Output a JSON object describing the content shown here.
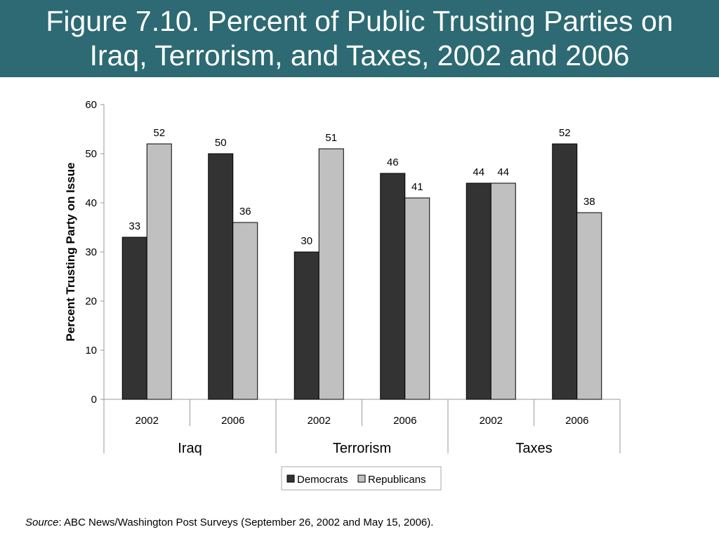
{
  "slide": {
    "title_line1": "Figure 7.10. Percent of Public Trusting Parties on",
    "title_line2": "Iraq, Terrorism, and Taxes, 2002 and 2006",
    "source_label": "Source",
    "source_text": ": ABC News/Washington Post Surveys (September 26, 2002 and May 15, 2006).",
    "header_color": "#2d6a73"
  },
  "chart_data": {
    "type": "bar",
    "title": "",
    "xlabel": "",
    "ylabel": "Percent Trusting Party on Issue",
    "ylim": [
      0,
      60
    ],
    "yticks": [
      0,
      10,
      20,
      30,
      40,
      50,
      60
    ],
    "groups": [
      {
        "label": "Iraq",
        "years": [
          "2002",
          "2006"
        ]
      },
      {
        "label": "Terrorism",
        "years": [
          "2002",
          "2006"
        ]
      },
      {
        "label": "Taxes",
        "years": [
          "2002",
          "2006"
        ]
      }
    ],
    "categories": [
      "2002",
      "2006",
      "2002",
      "2006",
      "2002",
      "2006"
    ],
    "series": [
      {
        "name": "Democrats",
        "color": "#333333",
        "values": [
          33,
          50,
          30,
          46,
          44,
          52
        ]
      },
      {
        "name": "Republicans",
        "color": "#c0c0c0",
        "values": [
          52,
          36,
          51,
          41,
          44,
          38
        ]
      }
    ],
    "legend_position": "bottom",
    "grid": false
  }
}
